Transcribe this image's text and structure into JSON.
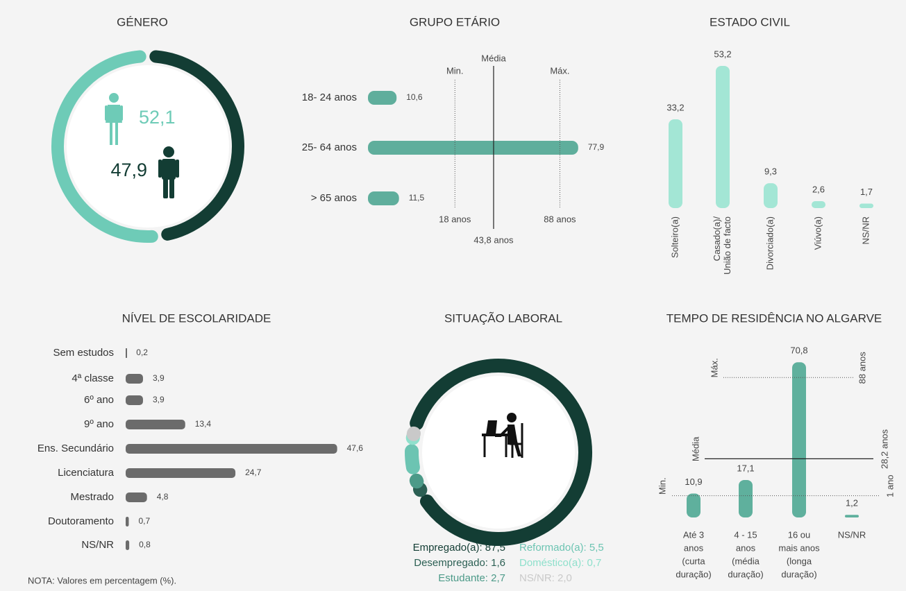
{
  "note": "NOTA: Valores em percentagem (%).",
  "chart_data": [
    {
      "type": "donut",
      "title": "GÉNERO",
      "values": [
        52.1,
        47.9
      ],
      "value_labels": [
        "52,1",
        "47,9"
      ],
      "colors": [
        "#6ecbb7",
        "#133d34"
      ]
    },
    {
      "type": "bar",
      "orientation": "horizontal",
      "title": "GRUPO ETÁRIO",
      "categories": [
        "18- 24 anos",
        "25- 64 anos",
        "> 65 anos"
      ],
      "values": [
        10.6,
        77.9,
        11.5
      ],
      "value_labels": [
        "10,6",
        "77,9",
        "11,5"
      ],
      "color": "#5fae9c",
      "xlim": [
        0,
        80
      ],
      "x2lim": [
        -40,
        104
      ],
      "reference_lines": [
        {
          "name": "Min.",
          "value": 18,
          "label": "18 anos",
          "style": "dotted"
        },
        {
          "name": "Média",
          "value": 43.8,
          "label": "43,8 anos",
          "style": "solid"
        },
        {
          "name": "Máx.",
          "value": 88,
          "label": "88 anos",
          "style": "dotted"
        }
      ]
    },
    {
      "type": "bar",
      "orientation": "vertical",
      "title": "ESTADO CIVIL",
      "categories": [
        [
          "Solteiro(a)"
        ],
        [
          "Casado(a)/",
          "União de facto"
        ],
        [
          "Divorciado(a)"
        ],
        [
          "Viúvo(a)"
        ],
        [
          "NS/NR"
        ]
      ],
      "values": [
        33.2,
        53.2,
        9.3,
        2.6,
        1.7
      ],
      "value_labels": [
        "33,2",
        "53,2",
        "9,3",
        "2,6",
        "1,7"
      ],
      "color": "#a3e6d5",
      "ylim": [
        0,
        55
      ]
    },
    {
      "type": "bar",
      "orientation": "horizontal",
      "title": "NÍVEL DE ESCOLARIDADE",
      "categories": [
        "Sem estudos",
        "4ª classe",
        "6º ano",
        "9º ano",
        "Ens. Secundário",
        "Licenciatura",
        "Mestrado",
        "Doutoramento",
        "NS/NR"
      ],
      "values": [
        0.2,
        3.9,
        3.9,
        13.4,
        47.6,
        24.7,
        4.8,
        0.7,
        0.8
      ],
      "value_labels": [
        "0,2",
        "3,9",
        "3,9",
        "13,4",
        "47,6",
        "24,7",
        "4,8",
        "0,7",
        "0,8"
      ],
      "color": "#6b6b6b",
      "xlim": [
        0,
        50
      ]
    },
    {
      "type": "donut",
      "title": "SITUAÇÃO LABORAL",
      "series": [
        {
          "name": "Empregado(a): 87,5",
          "color": "#133d34",
          "value": 87.5
        },
        {
          "name": "Desempregado: 1,6",
          "color": "#2b5f53",
          "value": 1.6
        },
        {
          "name": "Estudante: 2,7",
          "color": "#4c9a88",
          "value": 2.7
        },
        {
          "name": "Reformado(a): 5,5",
          "color": "#6cc4b2",
          "value": 5.5
        },
        {
          "name": "Doméstico(a): 0,7",
          "color": "#8fe0cc",
          "value": 0.7
        },
        {
          "name": "NS/NR: 2,0",
          "color": "#c9c9c9",
          "value": 2.0
        }
      ]
    },
    {
      "type": "bar",
      "orientation": "vertical",
      "title": "TEMPO DE RESIDÊNCIA NO ALGARVE",
      "categories": [
        [
          "Até 3",
          "anos",
          "(curta",
          "duração)"
        ],
        [
          "4 - 15",
          "anos",
          "(média",
          "duração)"
        ],
        [
          "16 ou",
          "mais anos",
          "(longa",
          "duração)"
        ],
        [
          "NS/NR"
        ]
      ],
      "values": [
        10.9,
        17.1,
        70.8,
        1.2
      ],
      "value_labels": [
        "10,9",
        "17,1",
        "70,8",
        "1,2"
      ],
      "color": "#5fb09d",
      "ylim": [
        0,
        75
      ],
      "y2lim": [
        -15,
        106
      ],
      "reference_lines": [
        {
          "name": "Máx.",
          "value": 88,
          "label": "88 anos",
          "style": "dotted"
        },
        {
          "name": "Média",
          "value": 28.2,
          "label": "28,2 anos",
          "style": "solid"
        },
        {
          "name": "Min.",
          "value": 1,
          "label": "1 ano",
          "style": "dotted"
        }
      ]
    }
  ]
}
